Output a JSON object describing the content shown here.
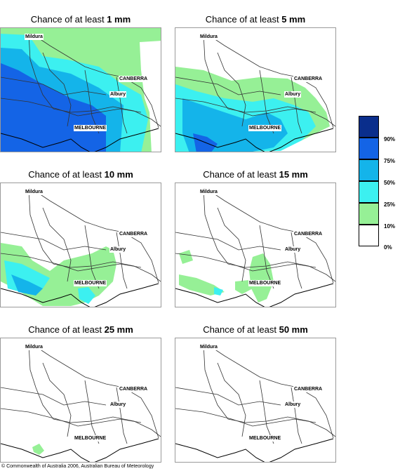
{
  "panels": [
    {
      "prefix": "Chance of at least",
      "amount": "1 mm"
    },
    {
      "prefix": "Chance of at least",
      "amount": "5 mm"
    },
    {
      "prefix": "Chance of at least",
      "amount": "10 mm"
    },
    {
      "prefix": "Chance of at least",
      "amount": "15 mm"
    },
    {
      "prefix": "Chance of at least",
      "amount": "25 mm"
    },
    {
      "prefix": "Chance of at least",
      "amount": "50 mm"
    }
  ],
  "places": {
    "mildura": "Mildura",
    "canberra": "CANBERRA",
    "albury": "Albury",
    "melbourne": "MELBOURNE"
  },
  "legend": {
    "labels": [
      "90%",
      "75%",
      "50%",
      "25%",
      "10%",
      "0%"
    ],
    "colors": [
      "#0a2e8c",
      "#1464e6",
      "#14b4ea",
      "#3cf0f0",
      "#96f096",
      "#ffffff"
    ]
  },
  "footer": "© Commonwealth of Australia 2006, Australian Bureau of Meteorology"
}
